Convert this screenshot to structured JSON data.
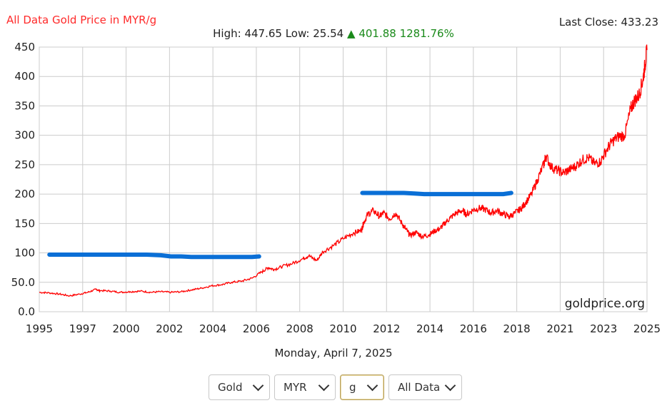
{
  "header": {
    "title": "All Data Gold Price in MYR/g",
    "last_close": "Last Close: 433.23",
    "high": "High: 447.65",
    "low": "Low: 25.54",
    "change_arrow": "▲",
    "change": "401.88 1281.76%"
  },
  "date_label": "Monday, April 7, 2025",
  "watermark": "goldprice.org",
  "colors": {
    "price_line": "#ff0000",
    "overlay": "#0a6fd6",
    "up": "#1a8a1a",
    "title": "#ff2a2a"
  },
  "controls": [
    {
      "name": "metal-select",
      "value": "Gold"
    },
    {
      "name": "currency-select",
      "value": "MYR"
    },
    {
      "name": "unit-select",
      "value": "g"
    },
    {
      "name": "range-select",
      "value": "All Data"
    }
  ],
  "chart_data": {
    "type": "line",
    "xlim": [
      1995,
      2025
    ],
    "ylim": [
      0,
      450
    ],
    "x_ticks": [
      "1995",
      "1997",
      "2000",
      "2002",
      "2004",
      "2006",
      "2008",
      "2010",
      "2012",
      "2014",
      "2016",
      "2018",
      "2021",
      "2023",
      "2025"
    ],
    "y_ticks": [
      "450",
      "400",
      "350",
      "300",
      "250",
      "200",
      "150",
      "100",
      "50.0",
      "0.0"
    ],
    "grid": true,
    "series": [
      {
        "x": [
          1995.0,
          1995.5,
          1996.0,
          1996.5,
          1997.0,
          1997.4,
          1997.8,
          1998.0,
          1998.5,
          1999.0,
          1999.5,
          2000.0,
          2000.5,
          2001.0,
          2001.5,
          2002.0,
          2002.5,
          2003.0,
          2003.5,
          2004.0,
          2004.5,
          2005.0,
          2005.5,
          2006.0,
          2006.3,
          2006.6,
          2007.0,
          2007.5,
          2008.0,
          2008.3,
          2008.7,
          2009.0,
          2009.5,
          2010.0,
          2010.5,
          2010.9,
          2011.0,
          2011.2,
          2011.5,
          2011.8,
          2012.0,
          2012.3,
          2012.6,
          2012.9,
          2013.1,
          2013.3,
          2013.6,
          2013.9,
          2014.2,
          2014.5,
          2014.8,
          2015.0,
          2015.3,
          2015.6,
          2015.9,
          2016.1,
          2016.4,
          2016.7,
          2017.0,
          2017.3,
          2017.6,
          2017.9,
          2018.2,
          2018.5,
          2018.8,
          2019.0,
          2019.3,
          2019.6,
          2019.9,
          2020.0,
          2020.3,
          2020.6,
          2020.9,
          2021.2,
          2021.5,
          2021.8,
          2022.1,
          2022.4,
          2022.7,
          2023.0,
          2023.3,
          2023.6,
          2023.9,
          2024.2,
          2024.4,
          2024.6,
          2024.8,
          2024.9,
          2025.0
        ],
        "values": [
          33,
          32,
          30,
          27,
          30,
          33,
          38,
          36,
          35,
          33,
          34,
          35,
          33,
          34,
          33,
          34,
          37,
          40,
          44,
          46,
          50,
          52,
          57,
          68,
          75,
          72,
          77,
          82,
          90,
          95,
          87,
          102,
          112,
          124,
          134,
          138,
          150,
          165,
          172,
          162,
          168,
          158,
          168,
          150,
          140,
          130,
          135,
          128,
          130,
          137,
          142,
          150,
          160,
          168,
          172,
          165,
          173,
          176,
          174,
          168,
          172,
          166,
          162,
          168,
          176,
          185,
          200,
          225,
          250,
          265,
          245,
          240,
          236,
          242,
          248,
          258,
          262,
          252,
          255,
          275,
          290,
          298,
          300,
          345,
          360,
          368,
          395,
          420,
          445
        ]
      }
    ],
    "annotations": [
      {
        "type": "segment",
        "label": "",
        "points": [
          [
            1995.5,
            97
          ],
          [
            1996.5,
            97
          ],
          [
            1997.5,
            97
          ],
          [
            1998.5,
            97
          ],
          [
            1999.5,
            97
          ],
          [
            2000.3,
            97
          ],
          [
            2001.0,
            96
          ],
          [
            2001.5,
            94
          ],
          [
            2002.0,
            94
          ],
          [
            2002.5,
            93
          ],
          [
            2003.0,
            93
          ],
          [
            2003.5,
            93
          ],
          [
            2004.0,
            93
          ],
          [
            2004.5,
            93
          ],
          [
            2005.0,
            93
          ],
          [
            2005.5,
            93
          ],
          [
            2005.85,
            94
          ]
        ]
      },
      {
        "type": "segment",
        "label": "",
        "points": [
          [
            2010.95,
            202
          ],
          [
            2011.5,
            202
          ],
          [
            2012.0,
            202
          ],
          [
            2012.5,
            202
          ],
          [
            2013.0,
            202
          ],
          [
            2013.5,
            201
          ],
          [
            2014.0,
            200
          ],
          [
            2015.0,
            200
          ],
          [
            2016.0,
            200
          ],
          [
            2017.0,
            200
          ],
          [
            2017.5,
            200
          ],
          [
            2017.9,
            200
          ],
          [
            2018.3,
            202
          ]
        ]
      }
    ]
  }
}
